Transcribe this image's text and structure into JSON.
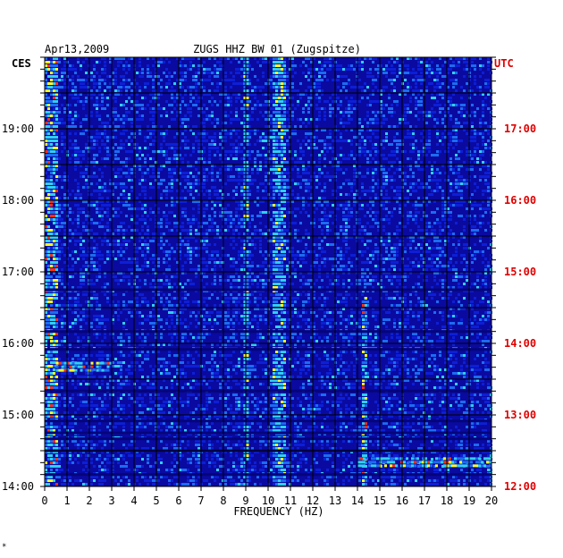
{
  "chart_data": {
    "type": "heatmap",
    "title": "ZUGS HHZ BW 01 (Zugspitze)",
    "date": "Apr13,2009",
    "xlabel": "FREQUENCY (HZ)",
    "x_range": [
      0,
      20
    ],
    "x_ticks": [
      "0",
      "1",
      "2",
      "3",
      "4",
      "5",
      "6",
      "7",
      "8",
      "9",
      "10",
      "11",
      "12",
      "13",
      "14",
      "15",
      "16",
      "17",
      "18",
      "19",
      "20"
    ],
    "left_axis": {
      "label": "CES",
      "ticks": [
        "19:00",
        "18:00",
        "17:00",
        "16:00",
        "15:00",
        "14:00"
      ]
    },
    "right_axis": {
      "label": "UTC",
      "ticks": [
        "17:00",
        "16:00",
        "15:00",
        "14:00",
        "13:00",
        "12:00"
      ]
    },
    "time_range_ces": [
      "14:00",
      "19:30"
    ],
    "grid": true,
    "colors": {
      "background": "#0a0aa0",
      "low": "#0d1fd6",
      "mid": "#1c6cf0",
      "high": "#2fd0f0",
      "peak": "#ffff20",
      "max": "#ff3010",
      "utc_label": "#e00000",
      "gap": "#05057a"
    },
    "features": [
      {
        "description": "strong low-frequency energy",
        "freq_hz": [
          0,
          0.6
        ],
        "intensity": "high"
      },
      {
        "description": "persistent spectral line",
        "freq_hz": 9.0,
        "intensity": "mid-high"
      },
      {
        "description": "spectral band",
        "freq_hz": [
          10.2,
          10.8
        ],
        "intensity": "mid-high"
      },
      {
        "description": "intermittent line",
        "freq_hz": 14.3,
        "time_ces": [
          "14:00",
          "16:45"
        ],
        "intensity": "high"
      },
      {
        "description": "broadband event",
        "freq_hz": [
          14,
          20
        ],
        "time_ces": "14:20",
        "intensity": "high"
      },
      {
        "description": "broadband event",
        "freq_hz": [
          0.5,
          3
        ],
        "time_ces": "15:40",
        "intensity": "high"
      }
    ]
  },
  "footer_mark": "*"
}
